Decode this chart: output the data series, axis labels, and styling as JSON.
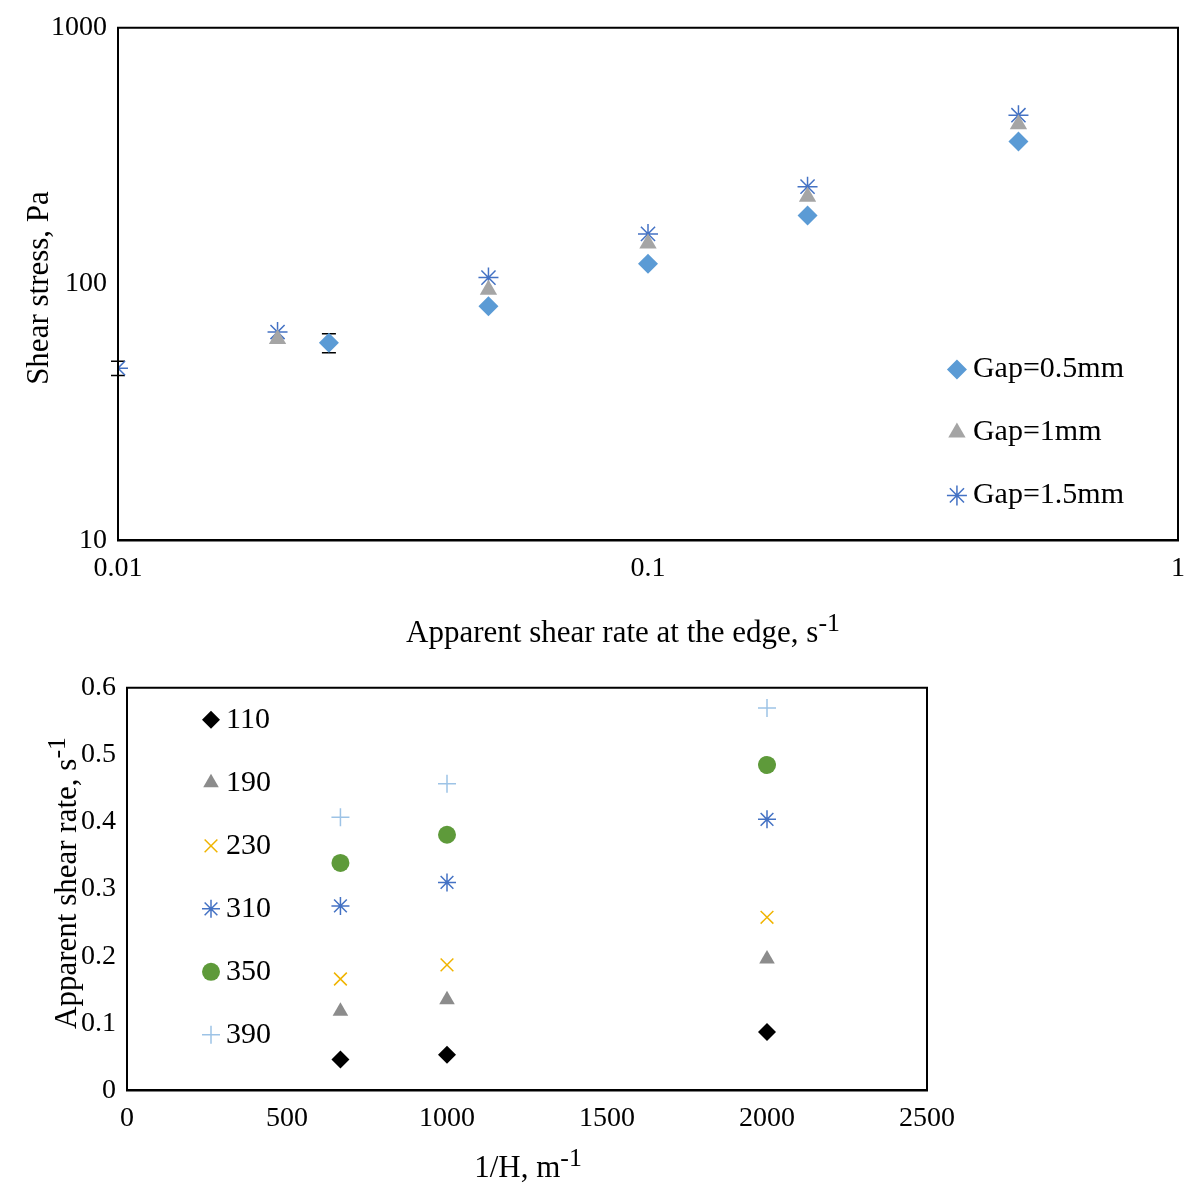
{
  "chart_data": [
    {
      "type": "scatter",
      "xlabel": "Apparent shear rate at the edge, s$^{-1}$",
      "ylabel": "Shear stress, Pa",
      "log": "xy",
      "xlim": [
        0.01,
        1
      ],
      "xticks": [
        0.01,
        0.1,
        1
      ],
      "ylim": [
        10,
        1000
      ],
      "yticks": [
        10,
        100,
        1000
      ],
      "legend": "bottom right",
      "grid": false,
      "series": [
        {
          "name": "Gap=0.5mm",
          "color": "#5b9bd5",
          "marker": "diamond",
          "x": [
            0.025,
            0.05,
            0.1,
            0.2,
            0.5
          ],
          "values": [
            59,
            82,
            120,
            185,
            360
          ],
          "errors": [
            5,
            null,
            null,
            null,
            null
          ]
        },
        {
          "name": "Gap=1mm",
          "color": "#a5a5a5",
          "marker": "triangle",
          "x": [
            0.02,
            0.05,
            0.1,
            0.2,
            0.5
          ],
          "values": [
            61,
            95,
            144,
            219,
            420
          ]
        },
        {
          "name": "Gap=1.5mm",
          "color": "#4472c4",
          "marker": "cross",
          "x": [
            0.01,
            0.02,
            0.05,
            0.1,
            0.2,
            0.5
          ],
          "values": [
            47,
            65,
            106,
            157,
            240,
            456
          ],
          "errors": [
            3,
            null,
            null,
            null,
            null,
            null
          ]
        }
      ]
    },
    {
      "type": "scatter",
      "xlabel": "1/H, m$^{-1}$",
      "ylabel": "Apparent shear rate, s$^{-1}$",
      "xlim": [
        0,
        2500
      ],
      "xticks": [
        0,
        500,
        1000,
        1500,
        2000,
        2500
      ],
      "ylim": [
        0,
        0.6
      ],
      "yticks": [
        0,
        0.1,
        0.2,
        0.3,
        0.4,
        0.5,
        0.6
      ],
      "legend": "top left",
      "grid": false,
      "x": [
        667,
        1000,
        2000
      ],
      "series": [
        {
          "name": "110",
          "color": "#000000",
          "marker": "diamond",
          "values": [
            0.046,
            0.053,
            0.087
          ]
        },
        {
          "name": "190",
          "color": "#8c8c8c",
          "marker": "triangle",
          "values": [
            0.118,
            0.135,
            0.196
          ]
        },
        {
          "name": "230",
          "color": "#f0b400",
          "marker": "x",
          "values": [
            0.166,
            0.187,
            0.258
          ]
        },
        {
          "name": "310",
          "color": "#4472c4",
          "marker": "cross",
          "values": [
            0.275,
            0.31,
            0.404
          ]
        },
        {
          "name": "350",
          "color": "#5e9a3a",
          "marker": "circle",
          "values": [
            0.339,
            0.381,
            0.485
          ]
        },
        {
          "name": "390",
          "color": "#9dc3e6",
          "marker": "plus",
          "values": [
            0.407,
            0.457,
            0.57
          ]
        }
      ]
    }
  ]
}
